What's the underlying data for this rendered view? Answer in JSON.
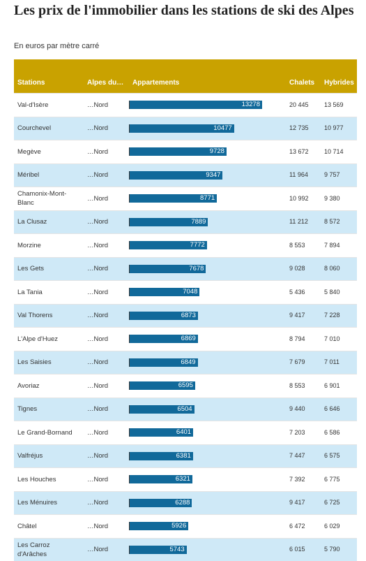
{
  "header": {
    "title": "Les prix de l'immobilier dans les stations de ski des Alpes",
    "subtitle": "En euros par mètre carré"
  },
  "table": {
    "columns": [
      "Stations",
      "Alpes du…",
      "Appartements",
      "Chalets",
      "Hybrides"
    ],
    "rows": [
      [
        "Val-d'Isère",
        "…Nord",
        13278,
        "20 445",
        "13 569"
      ],
      [
        "Courchevel",
        "…Nord",
        10477,
        "12 735",
        "10 977"
      ],
      [
        "Megève",
        "…Nord",
        9728,
        "13 672",
        "10 714"
      ],
      [
        "Méribel",
        "…Nord",
        9347,
        "11 964",
        "9 757"
      ],
      [
        "Chamonix-Mont-Blanc",
        "…Nord",
        8771,
        "10 992",
        "9 380"
      ],
      [
        "La Clusaz",
        "…Nord",
        7889,
        "11 212",
        "8 572"
      ],
      [
        "Morzine",
        "…Nord",
        7772,
        "8 553",
        "7 894"
      ],
      [
        "Les Gets",
        "…Nord",
        7678,
        "9 028",
        "8 060"
      ],
      [
        "La Tania",
        "…Nord",
        7048,
        "5 436",
        "5 840"
      ],
      [
        "Val Thorens",
        "…Nord",
        6873,
        "9 417",
        "7 228"
      ],
      [
        "L'Alpe d'Huez",
        "…Nord",
        6869,
        "8 794",
        "7 010"
      ],
      [
        "Les Saisies",
        "…Nord",
        6849,
        "7 679",
        "7 011"
      ],
      [
        "Avoriaz",
        "…Nord",
        6595,
        "8 553",
        "6 901"
      ],
      [
        "Tignes",
        "…Nord",
        6504,
        "9 440",
        "6 646"
      ],
      [
        "Le Grand-Bornand",
        "…Nord",
        6401,
        "7 203",
        "6 586"
      ],
      [
        "Valfréjus",
        "…Nord",
        6381,
        "7 447",
        "6 575"
      ],
      [
        "Les Houches",
        "…Nord",
        6321,
        "7 392",
        "6 775"
      ],
      [
        "Les Ménuires",
        "…Nord",
        6288,
        "9 417",
        "6 725"
      ],
      [
        "Châtel",
        "…Nord",
        5926,
        "6 472",
        "6 029"
      ],
      [
        "Les Carroz d'Arâches",
        "…Nord",
        5743,
        "6 015",
        "5 790"
      ]
    ]
  }
}
